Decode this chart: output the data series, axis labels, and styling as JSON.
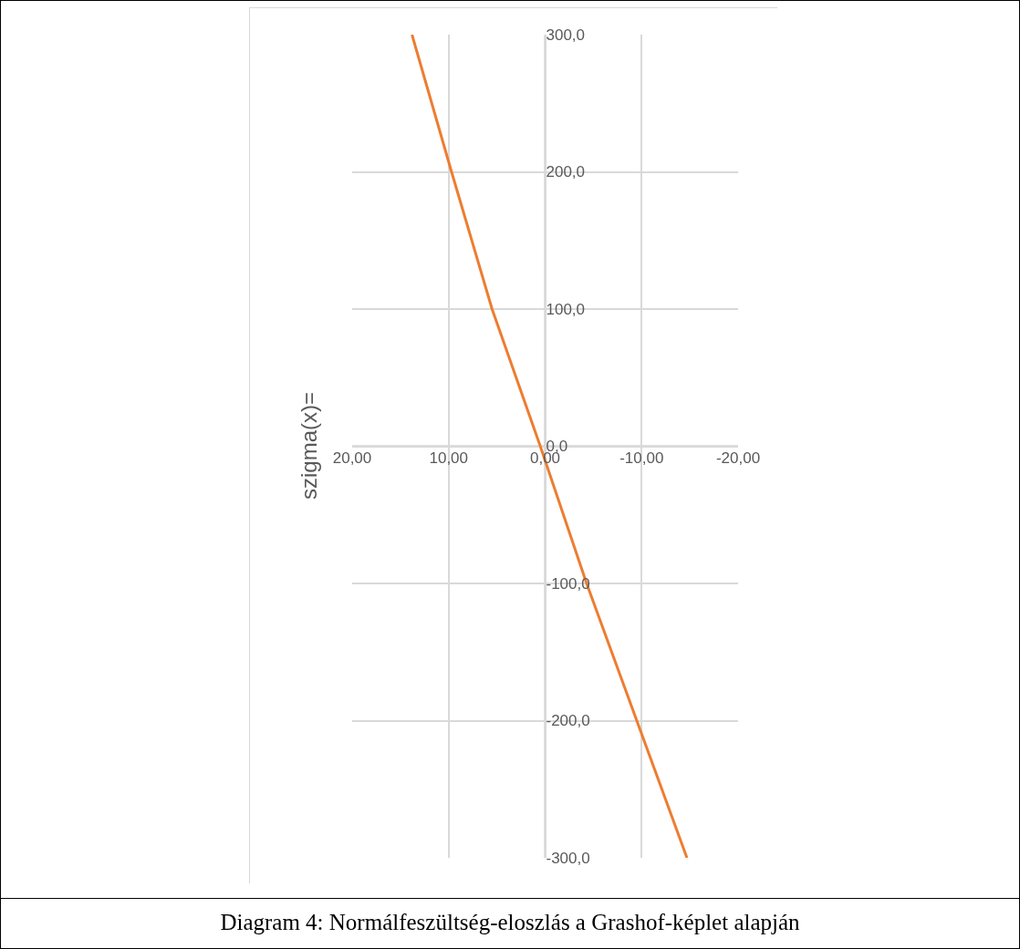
{
  "chart_data": {
    "type": "line",
    "ylabel": "szigma(x)=",
    "annotations": [
      "Diagram 4: Normálfeszültség-eloszlás a Grashof-képlet alapján"
    ],
    "series": [
      {
        "color": "#ed7d31",
        "x": [
          13.8,
          9.7,
          5.5,
          0.5,
          -4.3,
          -9.5,
          -14.7
        ],
        "values": [
          300,
          200,
          100,
          0,
          -100,
          -200,
          -300
        ]
      }
    ],
    "xlim": [
      20,
      -20
    ],
    "xticks": [
      {
        "value": 20,
        "label": "20,00"
      },
      {
        "value": 10,
        "label": "10,00"
      },
      {
        "value": 0,
        "label": "0,00"
      },
      {
        "value": -10,
        "label": "-10,00"
      },
      {
        "value": -20,
        "label": "-20,00"
      }
    ],
    "ylim": [
      -300,
      300
    ],
    "yticks": [
      {
        "value": -300,
        "label": "-300,0"
      },
      {
        "value": -200,
        "label": "-200,0"
      },
      {
        "value": -100,
        "label": "-100,0"
      },
      {
        "value": 0,
        "label": "0,0"
      },
      {
        "value": 100,
        "label": "100,0"
      },
      {
        "value": 200,
        "label": "200,0"
      },
      {
        "value": 300,
        "label": "300,0"
      }
    ],
    "grid": true,
    "marker": "none",
    "line_style": "solid"
  }
}
